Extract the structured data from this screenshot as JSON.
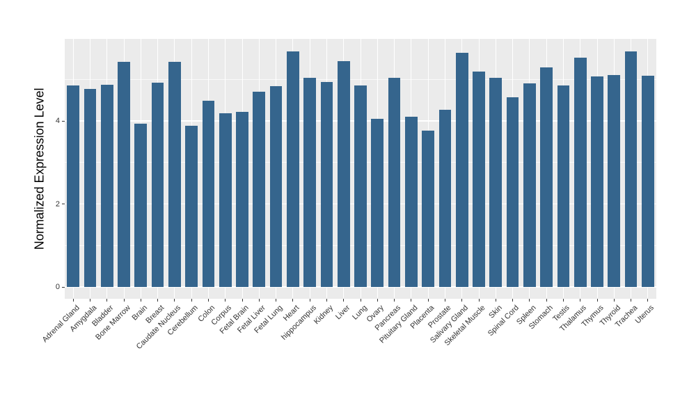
{
  "chart_data": {
    "type": "bar",
    "title": "",
    "xlabel": "",
    "ylabel": "Normalized Expression Level",
    "categories": [
      "Adrenal Gland",
      "Amygdala",
      "Bladder",
      "Bone Marrow",
      "Brain",
      "Breast",
      "Caudate Nucleus",
      "Cerebellum",
      "Colon",
      "Corpus",
      "Fetal Brain",
      "Fetal Liver",
      "Fetal Lung",
      "Heart",
      "hippocampus",
      "Kidney",
      "Liver",
      "Lung",
      "Ovary",
      "Pancreas",
      "Pituitary Gland",
      "Placenta",
      "Prostate",
      "Salivary Gland",
      "Skeletal Muscle",
      "Skin",
      "Spinal Cord",
      "Spleen",
      "Stomach",
      "Testis",
      "Thalamus",
      "Thymus",
      "Thyroid",
      "Trachea",
      "Uterus"
    ],
    "values": [
      4.85,
      4.77,
      4.87,
      5.43,
      3.94,
      4.92,
      5.42,
      3.88,
      4.49,
      4.18,
      4.22,
      4.7,
      4.84,
      5.68,
      5.05,
      4.94,
      5.44,
      4.85,
      4.05,
      5.04,
      4.1,
      3.77,
      4.27,
      5.65,
      5.2,
      5.05,
      4.58,
      4.9,
      5.3,
      4.85,
      5.52,
      5.08,
      5.11,
      5.68,
      5.09
    ],
    "ylim": [
      -0.28,
      5.98
    ],
    "yticks": [
      0,
      2,
      4
    ],
    "minor_ticks": [
      1,
      3,
      5
    ],
    "grid": true,
    "legend": "none",
    "bar_color": "#35658D",
    "panel_bg": "#EBEBEB",
    "grid_color": "#FFFFFF",
    "tick_label_color": "#333333",
    "axis_title_color": "#000000"
  }
}
